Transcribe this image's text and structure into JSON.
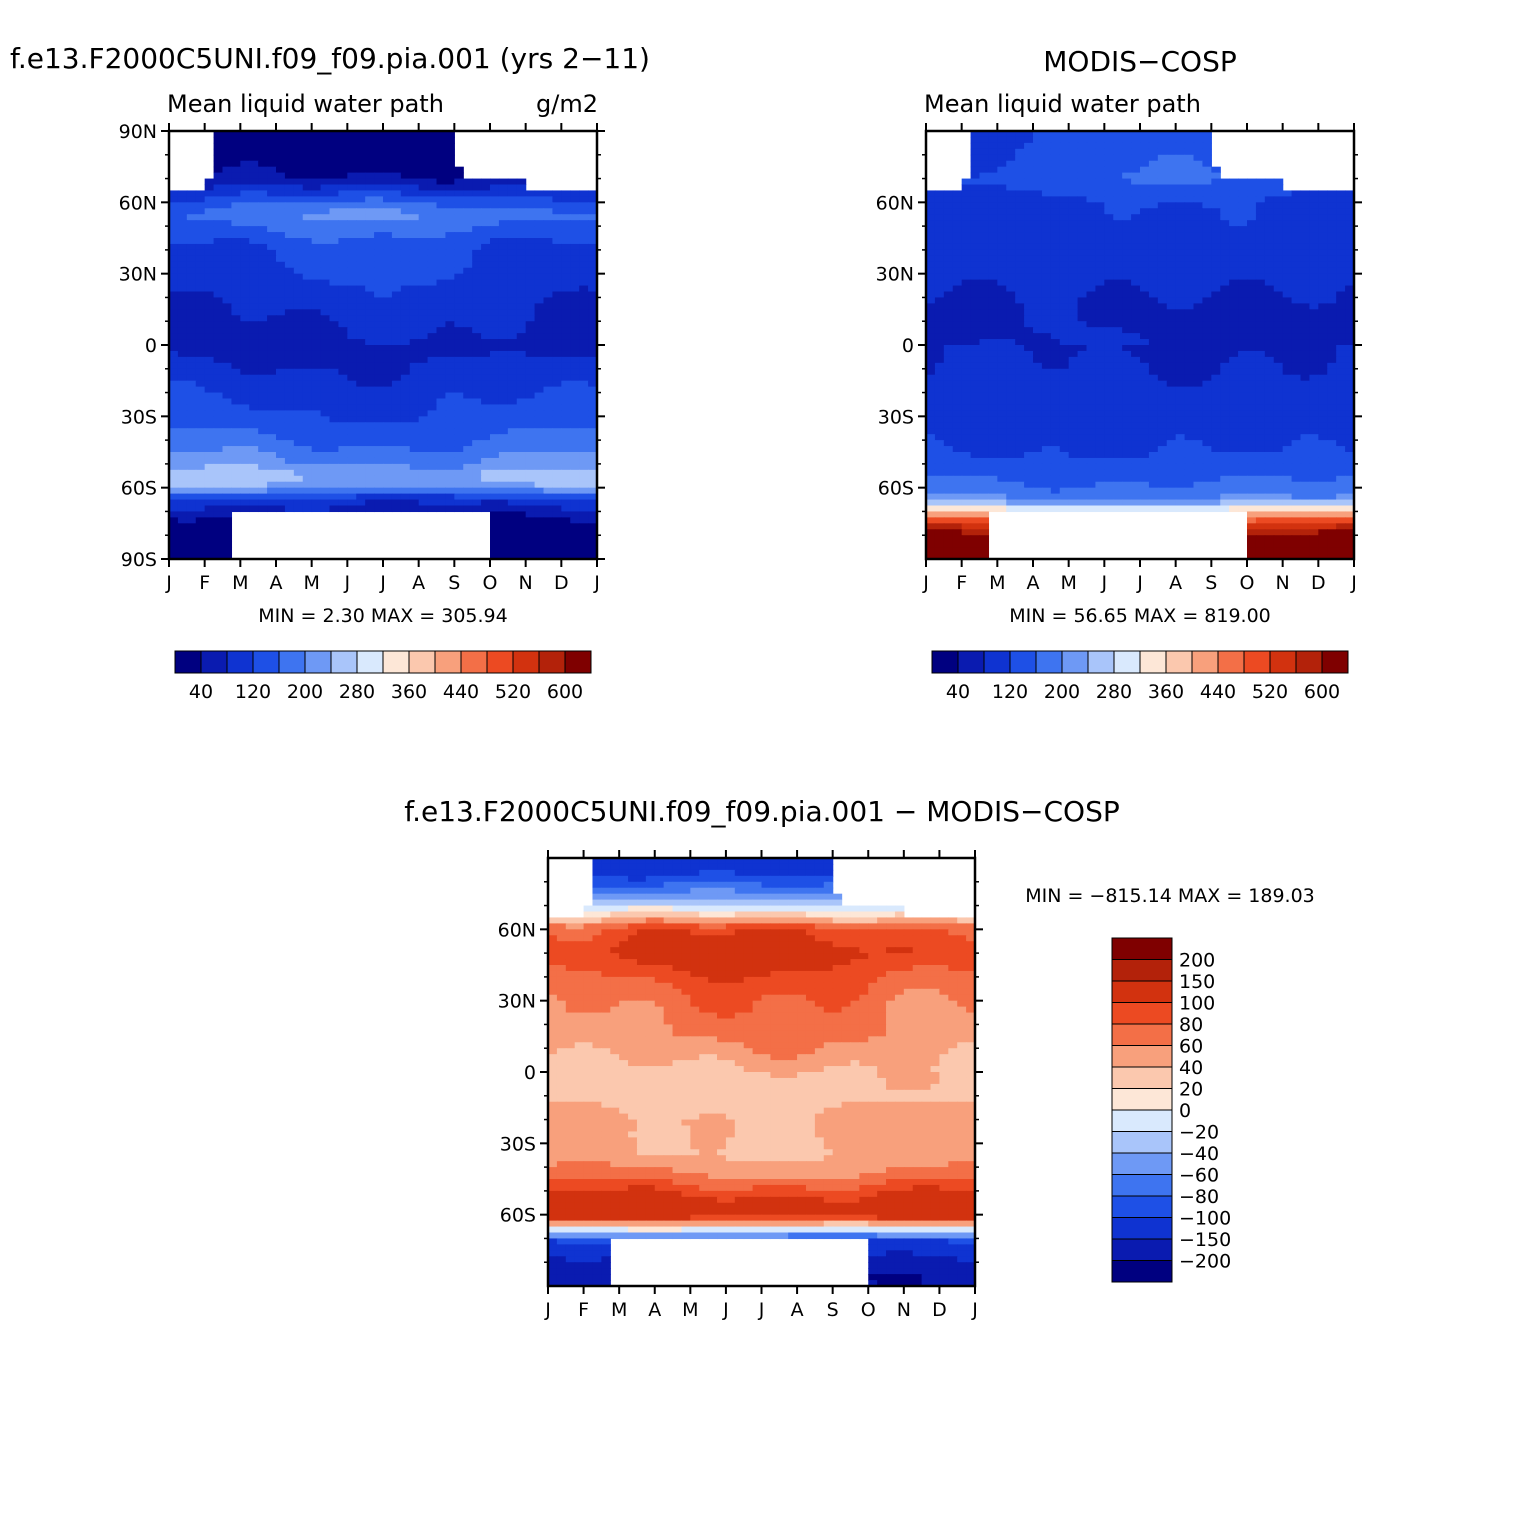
{
  "colors": {
    "lwp_levels": [
      "#000080",
      "#0a1bb0",
      "#0f33d1",
      "#1e50e6",
      "#3e74f0",
      "#6e99f5",
      "#a9c5fa",
      "#d9e9fd",
      "#fde7d7",
      "#fbc8ae",
      "#f8a07c",
      "#f36f47",
      "#ec4a22",
      "#d2320f",
      "#b3220a",
      "#7f0000"
    ],
    "diff_levels": [
      "#000080",
      "#0a1bb0",
      "#0f33d1",
      "#1e50e6",
      "#3e74f0",
      "#6e99f5",
      "#a9c5fa",
      "#d9e9fd",
      "#fde7d7",
      "#fbc8ae",
      "#f8a07c",
      "#f36f47",
      "#ec4a22",
      "#d2320f",
      "#b3220a",
      "#7f0000"
    ]
  },
  "months": [
    "J",
    "F",
    "M",
    "A",
    "M",
    "J",
    "J",
    "A",
    "S",
    "O",
    "N",
    "D",
    "J"
  ],
  "lat_labels_full": [
    "90N",
    "60N",
    "30N",
    "0",
    "30S",
    "60S",
    "90S"
  ],
  "lat_labels_part": [
    "60N",
    "30N",
    "0",
    "30S",
    "60S"
  ],
  "lwp_colorbar_labels": [
    "40",
    "120",
    "200",
    "280",
    "360",
    "440",
    "520",
    "600"
  ],
  "diff_colorbar_labels": [
    "200",
    "150",
    "100",
    "80",
    "60",
    "40",
    "20",
    "0",
    "−20",
    "−40",
    "−60",
    "−80",
    "−100",
    "−150",
    "−200"
  ],
  "panel_model": {
    "case_title": "f.e13.F2000C5UNI.f09_f09.pia.001 (yrs 2−11)",
    "subtitle_left": "Mean liquid water path",
    "subtitle_right": "g/m2",
    "minmax": "MIN =    2.30  MAX =  305.94"
  },
  "panel_obs": {
    "title": "MODIS−COSP",
    "subtitle_left": "Mean liquid water path",
    "minmax": "MIN =    56.65  MAX =  819.00"
  },
  "panel_diff": {
    "title": "f.e13.F2000C5UNI.f09_f09.pia.001  −  MODIS−COSP",
    "minmax": "MIN = −815.14  MAX =  189.03"
  },
  "chart_data": [
    {
      "type": "heatmap",
      "title": "f.e13.F2000C5UNI.f09_f09.pia.001 (yrs 2−11)",
      "subtitle": "Mean liquid water path",
      "units": "g/m2",
      "x": [
        "J",
        "F",
        "M",
        "A",
        "M",
        "J",
        "J",
        "A",
        "S",
        "O",
        "N",
        "D",
        "J"
      ],
      "ylabels": [
        "90N",
        "60N",
        "30N",
        "0",
        "30S",
        "60S",
        "90S"
      ],
      "ylim": [
        -90,
        90
      ],
      "min": 2.3,
      "max": 305.94,
      "contour_levels": [
        40,
        80,
        120,
        160,
        200,
        240,
        280,
        320,
        360,
        400,
        440,
        480,
        520,
        560,
        600
      ],
      "zonal_profile_by_lat": [
        [
          80,
          20
        ],
        [
          70,
          40
        ],
        [
          60,
          150
        ],
        [
          55,
          190
        ],
        [
          50,
          165
        ],
        [
          45,
          140
        ],
        [
          40,
          120
        ],
        [
          30,
          110
        ],
        [
          20,
          95
        ],
        [
          10,
          80
        ],
        [
          0,
          65
        ],
        [
          -10,
          85
        ],
        [
          -20,
          110
        ],
        [
          -30,
          130
        ],
        [
          -40,
          160
        ],
        [
          -50,
          210
        ],
        [
          -55,
          255
        ],
        [
          -60,
          220
        ],
        [
          -65,
          100
        ],
        [
          -75,
          20
        ],
        [
          -85,
          10
        ]
      ]
    },
    {
      "type": "heatmap",
      "title": "MODIS−COSP",
      "subtitle": "Mean liquid water path",
      "x": [
        "J",
        "F",
        "M",
        "A",
        "M",
        "J",
        "J",
        "A",
        "S",
        "O",
        "N",
        "D",
        "J"
      ],
      "ylabels": [
        "60N",
        "30N",
        "0",
        "30S",
        "60S"
      ],
      "ylim": [
        -90,
        90
      ],
      "min": 56.65,
      "max": 819.0,
      "contour_levels": [
        40,
        80,
        120,
        160,
        200,
        240,
        280,
        320,
        360,
        400,
        440,
        480,
        520,
        560,
        600
      ],
      "zonal_profile_by_lat": [
        [
          85,
          120
        ],
        [
          70,
          150
        ],
        [
          60,
          110
        ],
        [
          45,
          95
        ],
        [
          30,
          90
        ],
        [
          15,
          70
        ],
        [
          0,
          75
        ],
        [
          -15,
          90
        ],
        [
          -30,
          95
        ],
        [
          -45,
          120
        ],
        [
          -55,
          150
        ],
        [
          -65,
          200
        ],
        [
          -75,
          500
        ],
        [
          -85,
          650
        ]
      ]
    },
    {
      "type": "heatmap",
      "title": "f.e13.F2000C5UNI.f09_f09.pia.001 − MODIS−COSP",
      "x": [
        "J",
        "F",
        "M",
        "A",
        "M",
        "J",
        "J",
        "A",
        "S",
        "O",
        "N",
        "D",
        "J"
      ],
      "ylabels": [
        "60N",
        "30N",
        "0",
        "30S",
        "60S"
      ],
      "ylim": [
        -90,
        90
      ],
      "min": -815.14,
      "max": 189.03,
      "contour_levels": [
        -200,
        -150,
        -100,
        -80,
        -60,
        -40,
        -20,
        0,
        20,
        40,
        60,
        80,
        100,
        150,
        200
      ],
      "zonal_profile_by_lat": [
        [
          85,
          -120
        ],
        [
          75,
          -60
        ],
        [
          68,
          0
        ],
        [
          60,
          90
        ],
        [
          50,
          110
        ],
        [
          40,
          85
        ],
        [
          30,
          70
        ],
        [
          15,
          60
        ],
        [
          0,
          35
        ],
        [
          -10,
          30
        ],
        [
          -20,
          45
        ],
        [
          -35,
          40
        ],
        [
          -45,
          70
        ],
        [
          -55,
          120
        ],
        [
          -60,
          130
        ],
        [
          -66,
          0
        ],
        [
          -72,
          -120
        ],
        [
          -85,
          -200
        ]
      ]
    }
  ]
}
